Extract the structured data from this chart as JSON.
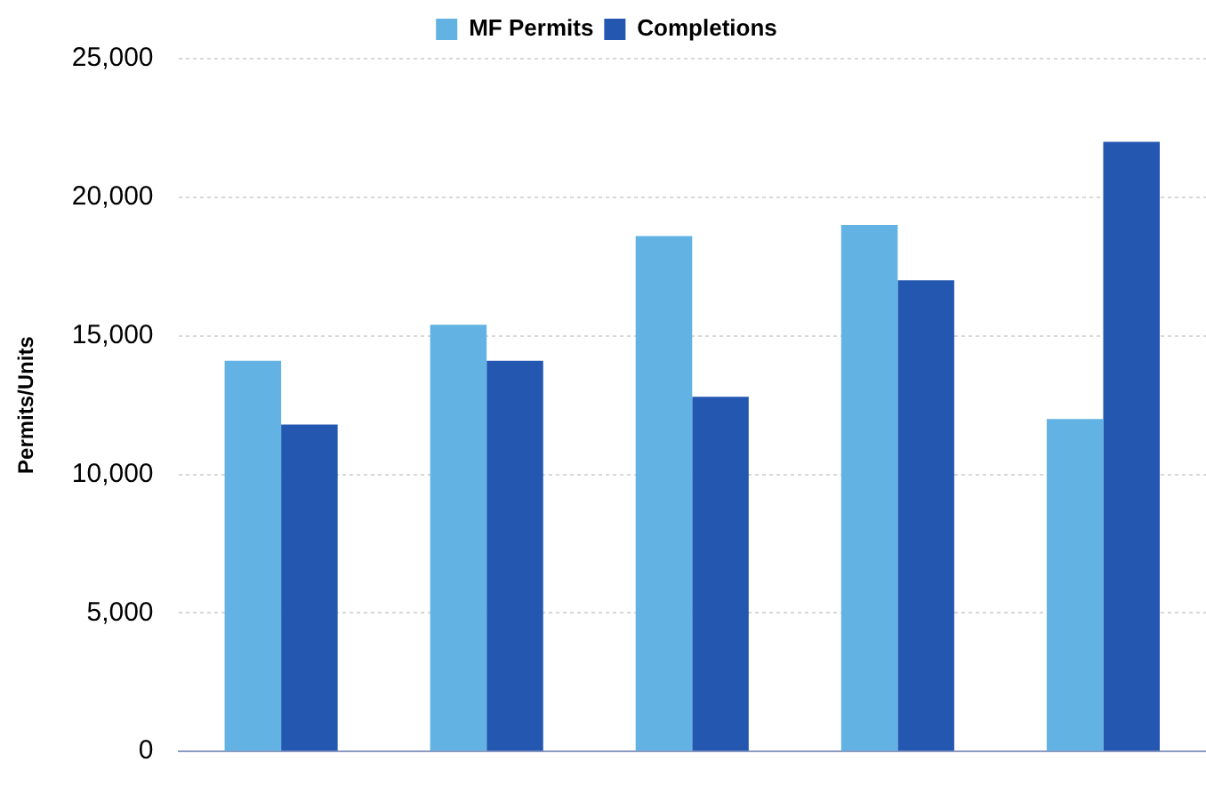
{
  "chart_data": {
    "type": "bar",
    "ylabel": "Permits/Units",
    "categories": [
      null,
      null,
      null,
      null,
      null
    ],
    "series": [
      {
        "name": "MF Permits",
        "color": "#62b3e3",
        "values": [
          14100,
          15400,
          18600,
          19000,
          12000
        ]
      },
      {
        "name": "Completions",
        "color": "#2457b0",
        "values": [
          11800,
          14100,
          12800,
          17000,
          22000
        ]
      }
    ],
    "ylim": [
      0,
      25000
    ],
    "yticks": [
      {
        "value": 0,
        "label": "0"
      },
      {
        "value": 5000,
        "label": "5,000"
      },
      {
        "value": 10000,
        "label": "10,000"
      },
      {
        "value": 15000,
        "label": "15,000"
      },
      {
        "value": 20000,
        "label": "20,000"
      },
      {
        "value": 25000,
        "label": "25,000"
      }
    ],
    "grid": "y",
    "legend": "top"
  }
}
